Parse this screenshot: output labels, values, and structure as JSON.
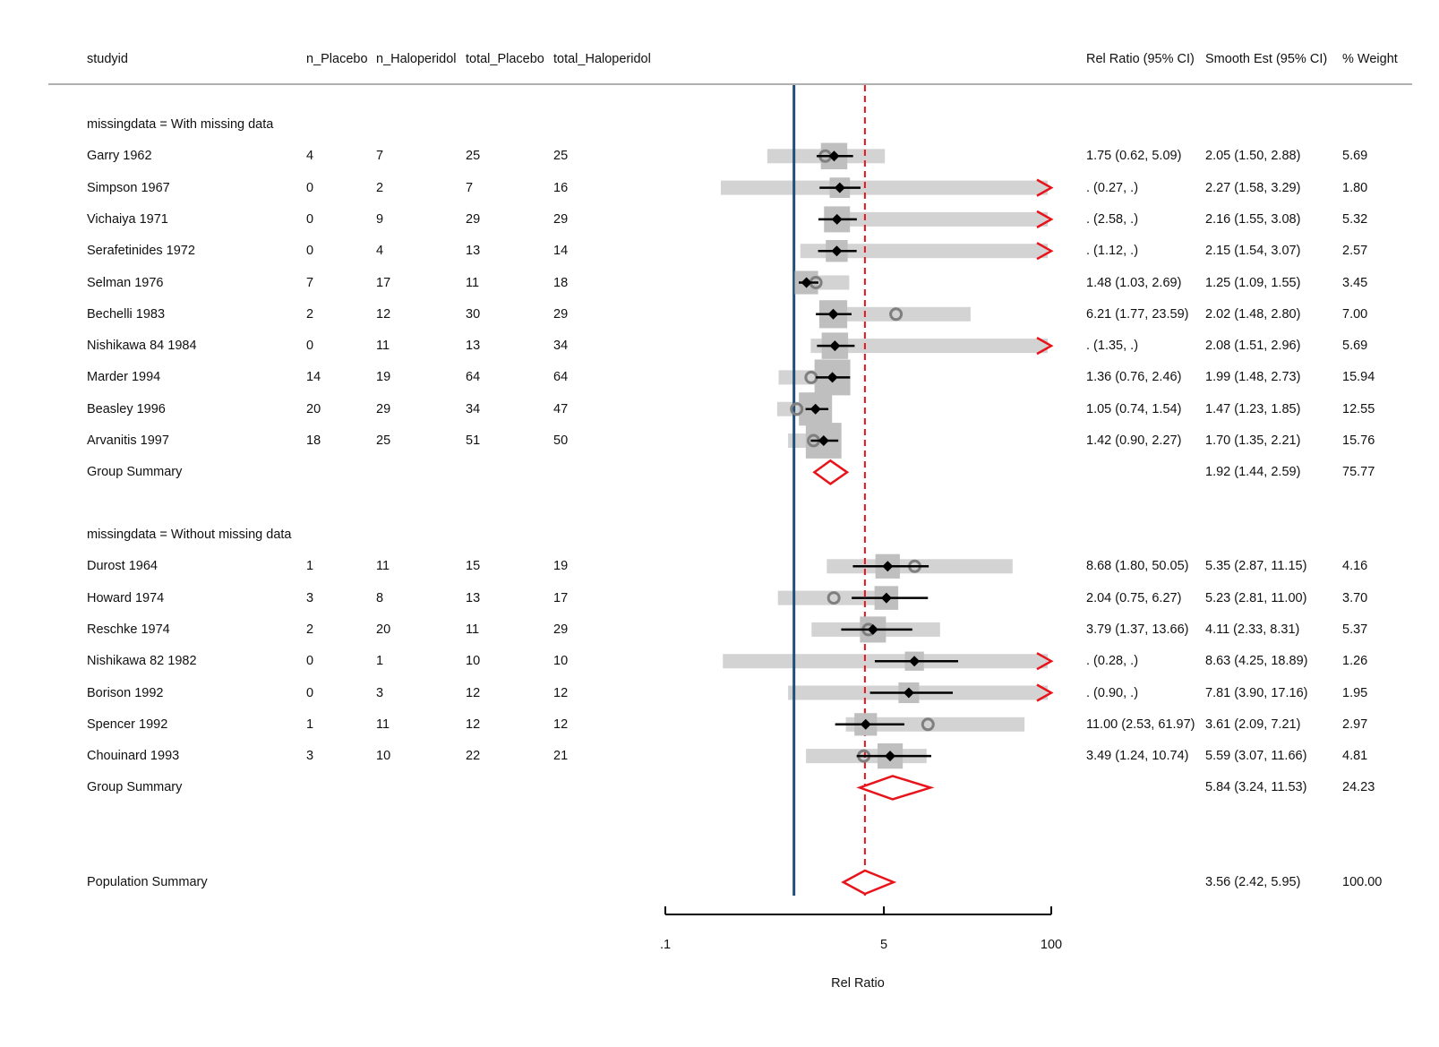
{
  "chart_data": {
    "type": "forest",
    "columns": {
      "studyid": "studyid",
      "n_placebo": "n_Placebo",
      "n_haloperidol": "n_Haloperidol",
      "total_placebo": "total_Placebo",
      "total_haloperidol": "total_Haloperidol",
      "rel_ratio": "Rel Ratio (95% CI)",
      "smooth_est": "Smooth Est (95% CI)",
      "weight": "% Weight"
    },
    "x_axis": {
      "label": "Rel Ratio",
      "scale": "log",
      "range": [
        0.1,
        100
      ],
      "ticks": [
        0.1,
        5,
        100
      ],
      "tick_labels": [
        ".1",
        "5",
        "100"
      ],
      "null_line": 1
    },
    "overall_reference": 3.56,
    "groups": [
      {
        "label": "missingdata = With missing data",
        "rows": [
          {
            "studyid": "Garry 1962",
            "n_placebo": "4",
            "n_haloperidol": "7",
            "total_placebo": "25",
            "total_haloperidol": "25",
            "rr": 1.75,
            "rr_lo": 0.62,
            "rr_hi": 5.09,
            "rr_text": "1.75 (0.62, 5.09)",
            "sm": 2.05,
            "sm_lo": 1.5,
            "sm_hi": 2.88,
            "sm_text": "2.05 (1.50, 2.88)",
            "weight": "5.69"
          },
          {
            "studyid": "Simpson 1967",
            "n_placebo": "0",
            "n_haloperidol": "2",
            "total_placebo": "7",
            "total_haloperidol": "16",
            "rr": null,
            "rr_lo": 0.27,
            "rr_hi": null,
            "rr_text": ". (0.27, .)",
            "sm": 2.27,
            "sm_lo": 1.58,
            "sm_hi": 3.29,
            "sm_text": "2.27 (1.58, 3.29)",
            "weight": "1.80"
          },
          {
            "studyid": "Vichaiya 1971",
            "n_placebo": "0",
            "n_haloperidol": "9",
            "total_placebo": "29",
            "total_haloperidol": "29",
            "rr": null,
            "rr_lo": 2.58,
            "rr_hi": null,
            "rr_text": ". (2.58, .)",
            "sm": 2.16,
            "sm_lo": 1.55,
            "sm_hi": 3.08,
            "sm_text": "2.16 (1.55, 3.08)",
            "weight": "5.32"
          },
          {
            "studyid": "Serafetinides 1972",
            "n_placebo": "0",
            "n_haloperidol": "4",
            "total_placebo": "13",
            "total_haloperidol": "14",
            "rr": null,
            "rr_lo": 1.12,
            "rr_hi": null,
            "rr_text": ". (1.12, .)",
            "sm": 2.15,
            "sm_lo": 1.54,
            "sm_hi": 3.07,
            "sm_text": "2.15 (1.54, 3.07)",
            "weight": "2.57"
          },
          {
            "studyid": "Selman 1976",
            "n_placebo": "7",
            "n_haloperidol": "17",
            "total_placebo": "11",
            "total_haloperidol": "18",
            "rr": 1.48,
            "rr_lo": 1.03,
            "rr_hi": 2.69,
            "rr_text": "1.48 (1.03, 2.69)",
            "sm": 1.25,
            "sm_lo": 1.09,
            "sm_hi": 1.55,
            "sm_text": "1.25 (1.09, 1.55)",
            "weight": "3.45"
          },
          {
            "studyid": "Bechelli 1983",
            "n_placebo": "2",
            "n_haloperidol": "12",
            "total_placebo": "30",
            "total_haloperidol": "29",
            "rr": 6.21,
            "rr_lo": 1.77,
            "rr_hi": 23.59,
            "rr_text": "6.21 (1.77, 23.59)",
            "sm": 2.02,
            "sm_lo": 1.48,
            "sm_hi": 2.8,
            "sm_text": "2.02 (1.48, 2.80)",
            "weight": "7.00"
          },
          {
            "studyid": "Nishikawa 84 1984",
            "n_placebo": "0",
            "n_haloperidol": "11",
            "total_placebo": "13",
            "total_haloperidol": "34",
            "rr": null,
            "rr_lo": 1.35,
            "rr_hi": null,
            "rr_text": ". (1.35, .)",
            "sm": 2.08,
            "sm_lo": 1.51,
            "sm_hi": 2.96,
            "sm_text": "2.08 (1.51, 2.96)",
            "weight": "5.69"
          },
          {
            "studyid": "Marder 1994",
            "n_placebo": "14",
            "n_haloperidol": "19",
            "total_placebo": "64",
            "total_haloperidol": "64",
            "rr": 1.36,
            "rr_lo": 0.76,
            "rr_hi": 2.46,
            "rr_text": "1.36 (0.76, 2.46)",
            "sm": 1.99,
            "sm_lo": 1.48,
            "sm_hi": 2.73,
            "sm_text": "1.99 (1.48, 2.73)",
            "weight": "15.94"
          },
          {
            "studyid": "Beasley 1996",
            "n_placebo": "20",
            "n_haloperidol": "29",
            "total_placebo": "34",
            "total_haloperidol": "47",
            "rr": 1.05,
            "rr_lo": 0.74,
            "rr_hi": 1.54,
            "rr_text": "1.05 (0.74, 1.54)",
            "sm": 1.47,
            "sm_lo": 1.23,
            "sm_hi": 1.85,
            "sm_text": "1.47 (1.23, 1.85)",
            "weight": "12.55"
          },
          {
            "studyid": "Arvanitis 1997",
            "n_placebo": "18",
            "n_haloperidol": "25",
            "total_placebo": "51",
            "total_haloperidol": "50",
            "rr": 1.42,
            "rr_lo": 0.9,
            "rr_hi": 2.27,
            "rr_text": "1.42 (0.90, 2.27)",
            "sm": 1.7,
            "sm_lo": 1.35,
            "sm_hi": 2.21,
            "sm_text": "1.70 (1.35, 2.21)",
            "weight": "15.76"
          }
        ],
        "summary": {
          "label": "Group Summary",
          "est": 1.92,
          "lo": 1.44,
          "hi": 2.59,
          "text": "1.92 (1.44, 2.59)",
          "weight": "75.77"
        }
      },
      {
        "label": "missingdata = Without missing data",
        "rows": [
          {
            "studyid": "Durost 1964",
            "n_placebo": "1",
            "n_haloperidol": "11",
            "total_placebo": "15",
            "total_haloperidol": "19",
            "rr": 8.68,
            "rr_lo": 1.8,
            "rr_hi": 50.05,
            "rr_text": "8.68 (1.80, 50.05)",
            "sm": 5.35,
            "sm_lo": 2.87,
            "sm_hi": 11.15,
            "sm_text": "5.35 (2.87, 11.15)",
            "weight": "4.16"
          },
          {
            "studyid": "Howard 1974",
            "n_placebo": "3",
            "n_haloperidol": "8",
            "total_placebo": "13",
            "total_haloperidol": "17",
            "rr": 2.04,
            "rr_lo": 0.75,
            "rr_hi": 6.27,
            "rr_text": "2.04 (0.75, 6.27)",
            "sm": 5.23,
            "sm_lo": 2.81,
            "sm_hi": 11.0,
            "sm_text": "5.23 (2.81, 11.00)",
            "weight": "3.70"
          },
          {
            "studyid": "Reschke 1974",
            "n_placebo": "2",
            "n_haloperidol": "20",
            "total_placebo": "11",
            "total_haloperidol": "29",
            "rr": 3.79,
            "rr_lo": 1.37,
            "rr_hi": 13.66,
            "rr_text": "3.79 (1.37, 13.66)",
            "sm": 4.11,
            "sm_lo": 2.33,
            "sm_hi": 8.31,
            "sm_text": "4.11 (2.33, 8.31)",
            "weight": "5.37"
          },
          {
            "studyid": "Nishikawa 82 1982",
            "n_placebo": "0",
            "n_haloperidol": "1",
            "total_placebo": "10",
            "total_haloperidol": "10",
            "rr": null,
            "rr_lo": 0.28,
            "rr_hi": null,
            "rr_text": ". (0.28, .)",
            "sm": 8.63,
            "sm_lo": 4.25,
            "sm_hi": 18.89,
            "sm_text": "8.63 (4.25, 18.89)",
            "weight": "1.26"
          },
          {
            "studyid": "Borison 1992",
            "n_placebo": "0",
            "n_haloperidol": "3",
            "total_placebo": "12",
            "total_haloperidol": "12",
            "rr": null,
            "rr_lo": 0.9,
            "rr_hi": null,
            "rr_text": ". (0.90, .)",
            "sm": 7.81,
            "sm_lo": 3.9,
            "sm_hi": 17.16,
            "sm_text": "7.81 (3.90, 17.16)",
            "weight": "1.95"
          },
          {
            "studyid": "Spencer 1992",
            "n_placebo": "1",
            "n_haloperidol": "11",
            "total_placebo": "12",
            "total_haloperidol": "12",
            "rr": 11.0,
            "rr_lo": 2.53,
            "rr_hi": 61.97,
            "rr_text": "11.00 (2.53, 61.97)",
            "sm": 3.61,
            "sm_lo": 2.09,
            "sm_hi": 7.21,
            "sm_text": "3.61 (2.09, 7.21)",
            "weight": "2.97"
          },
          {
            "studyid": "Chouinard 1993",
            "n_placebo": "3",
            "n_haloperidol": "10",
            "total_placebo": "22",
            "total_haloperidol": "21",
            "rr": 3.49,
            "rr_lo": 1.24,
            "rr_hi": 10.74,
            "rr_text": "3.49 (1.24, 10.74)",
            "sm": 5.59,
            "sm_lo": 3.07,
            "sm_hi": 11.66,
            "sm_text": "5.59 (3.07, 11.66)",
            "weight": "4.81"
          }
        ],
        "summary": {
          "label": "Group Summary",
          "est": 5.84,
          "lo": 3.24,
          "hi": 11.53,
          "text": "5.84 (3.24, 11.53)",
          "weight": "24.23"
        }
      }
    ],
    "overall": {
      "label": "Population Summary",
      "est": 3.56,
      "lo": 2.42,
      "hi": 5.95,
      "text": "3.56 (2.42, 5.95)",
      "weight": "100.00"
    },
    "colors": {
      "null_line": "#1f4e79",
      "reference_line": "#e8141b",
      "summary_diamond": "#e8141b",
      "ci_band": "#d3d3d3",
      "weight_box": "#bfbfbf",
      "observed_marker": "#7f7f7f",
      "smooth_marker": "#000000",
      "truncation_arrow": "#e8141b"
    }
  }
}
